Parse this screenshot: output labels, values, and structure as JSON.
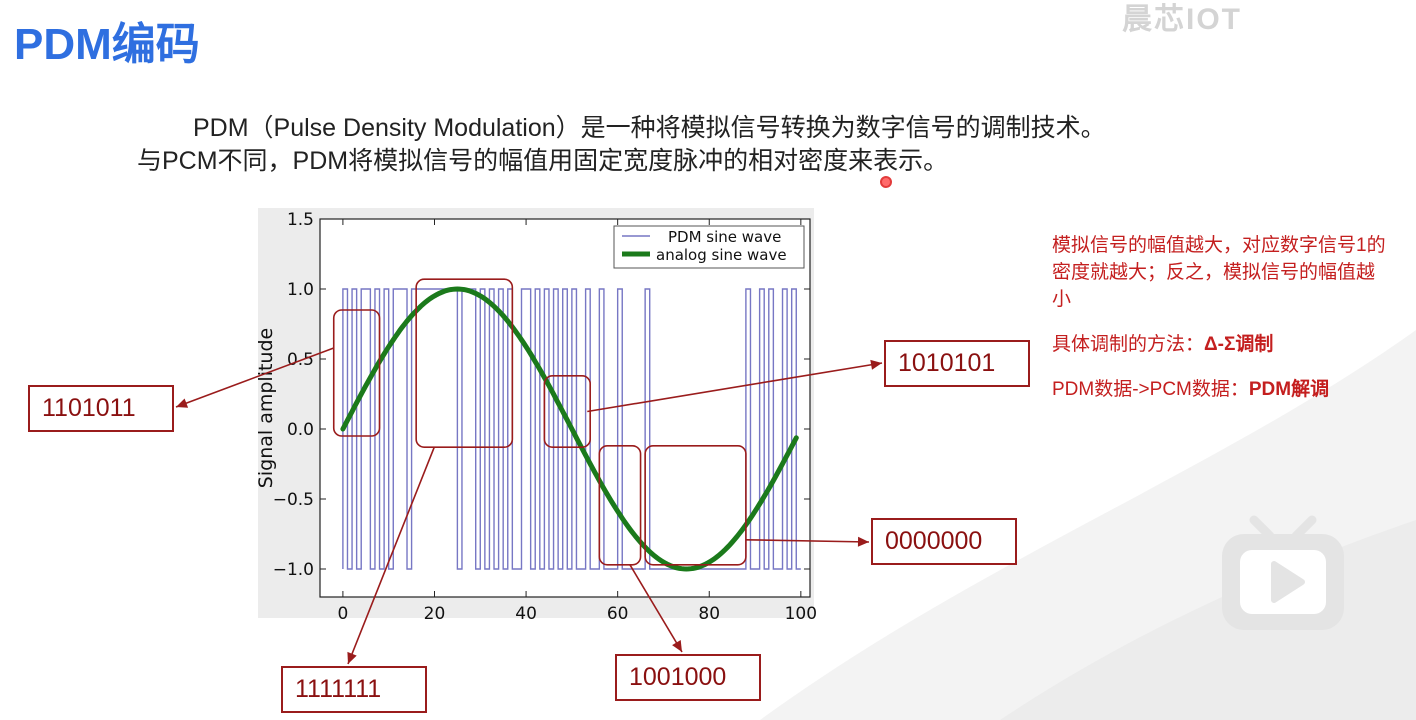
{
  "title": "PDM编码",
  "watermark": "晨芯IOT",
  "intro": {
    "line1": "PDM（Pulse Density Modulation）是一种将模拟信号转换为数字信号的调制技术。",
    "line2": "与PCM不同，PDM将模拟信号的幅值用固定宽度脉冲的相对密度来表示。"
  },
  "chart_data": {
    "type": "line",
    "title": "",
    "xlabel": "",
    "ylabel": "Signal amplitude",
    "xlim": [
      -5,
      102
    ],
    "ylim": [
      -1.2,
      1.5
    ],
    "x_ticks": [
      0,
      20,
      40,
      60,
      80,
      100
    ],
    "x_tick_labels": [
      "0",
      "20",
      "40",
      "60",
      "80",
      "100"
    ],
    "y_ticks": [
      -1.0,
      -0.5,
      0.0,
      0.5,
      1.0,
      1.5
    ],
    "y_tick_labels": [
      "−1.0",
      "−0.5",
      "0.0",
      "0.5",
      "1.0",
      "1.5"
    ],
    "grid": false,
    "legend_position": "top-right",
    "series": [
      {
        "name": "PDM sine wave",
        "color": "#7777c4",
        "style": "step",
        "high_intervals": [
          [
            0,
            1
          ],
          [
            2,
            3
          ],
          [
            4,
            6
          ],
          [
            7,
            8
          ],
          [
            9,
            10
          ],
          [
            11,
            14
          ],
          [
            15,
            25
          ],
          [
            26,
            29
          ],
          [
            30,
            31
          ],
          [
            32,
            33
          ],
          [
            34,
            35
          ],
          [
            36,
            37
          ],
          [
            39,
            41
          ],
          [
            42,
            43
          ],
          [
            44,
            45
          ],
          [
            46,
            47
          ],
          [
            48,
            49
          ],
          [
            50,
            51
          ],
          [
            53,
            54
          ],
          [
            56,
            57
          ],
          [
            60,
            61
          ],
          [
            66,
            67
          ],
          [
            88,
            89
          ],
          [
            91,
            92
          ],
          [
            93,
            94
          ],
          [
            96,
            97
          ],
          [
            98,
            99
          ]
        ],
        "x_range": [
          0,
          100
        ],
        "levels": [
          -1,
          1
        ]
      },
      {
        "name": "analog sine wave",
        "color": "#1b7a1b",
        "function": "sin(2*pi*x/100)",
        "x_range": [
          0,
          99
        ]
      }
    ]
  },
  "annotations": [
    {
      "code": "1101011",
      "region_x": [
        -2,
        8
      ],
      "region_y": [
        -0.05,
        0.85
      ]
    },
    {
      "code": "1111111",
      "region_x": [
        16,
        37
      ],
      "region_y": [
        -0.13,
        1.07
      ]
    },
    {
      "code": "1010101",
      "region_x": [
        44,
        54
      ],
      "region_y": [
        -0.13,
        0.38
      ]
    },
    {
      "code": "1001000",
      "region_x": [
        56,
        65
      ],
      "region_y": [
        -0.97,
        -0.12
      ]
    },
    {
      "code": "0000000",
      "region_x": [
        66,
        88
      ],
      "region_y": [
        -0.97,
        -0.12
      ]
    }
  ],
  "side_notes": {
    "note1": "模拟信号的幅值越大，对应数字信号1的密度就越大；反之，模拟信号的幅值越小",
    "method_label": "具体调制的方法：",
    "method_value": "Δ-Σ调制",
    "conversion_label": "PDM数据->PCM数据：",
    "conversion_value": "PDM解调"
  },
  "colors": {
    "title": "#2f6fe0",
    "annotation": "#9a1c1c",
    "note_text": "#c41f1f"
  },
  "icons": [
    "bilibili-tv-icon"
  ]
}
